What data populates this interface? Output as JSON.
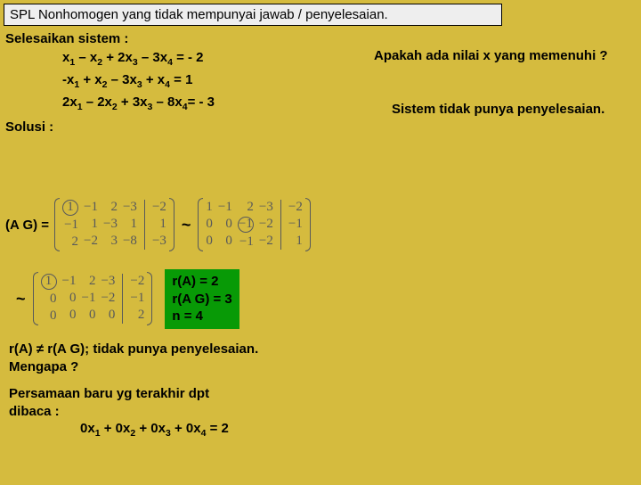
{
  "title": "SPL Nonhomogen yang tidak mempunyai jawab / penyelesaian.",
  "instruction": "Selesaikan sistem :",
  "equations": {
    "e1": "x₁ – x₂ + 2x₃ – 3x₄ = - 2",
    "e2": "-x₁ + x₂ – 3x₃ + x₄ = 1",
    "e3": "2x₁ – 2x₂ + 3x₃ – 8x₄= - 3"
  },
  "question_right": "Apakah ada nilai x yang memenuhi ?",
  "conclusion_right": "Sistem tidak punya penyelesaian.",
  "solusi_label": "Solusi :",
  "ag_label": "(A G) =",
  "tilde": "~",
  "green": {
    "l1": "r(A) = 2",
    "l2": "r(A G) = 3",
    "l3": "n = 4"
  },
  "concl1": "r(A) ≠ r(A G); tidak punya penyelesaian.",
  "concl2": "Mengapa ?",
  "last1": "Persamaan baru yg terakhir dpt",
  "last2": "dibaca :",
  "lasteq": "0x₁ + 0x₂ + 0x₃ + 0x₄ =  2",
  "colors": {
    "bg": "#d5bb3e",
    "greenbox": "#089a06",
    "titlebg": "#eeeeee",
    "matrix": "#58595b"
  }
}
